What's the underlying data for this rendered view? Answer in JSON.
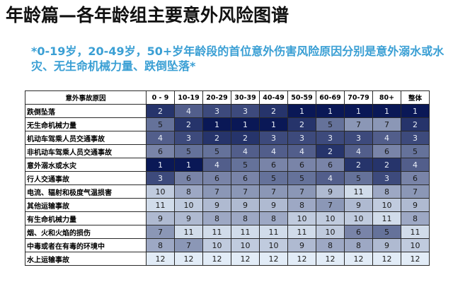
{
  "page": {
    "title": "年龄篇—各年龄组主要意外风险图谱",
    "subtitle": "*0-19岁，20-49岁，50+岁年龄段的首位意外伤害风险原因分别是意外溺水或水灾、无生命机械力量、跌倒坠落*"
  },
  "table": {
    "header_cause": "意外事故原因",
    "columns": [
      "0 - 9",
      "10-19",
      "20-29",
      "30-39",
      "40-49",
      "50-59",
      "60-69",
      "70-79",
      "80+",
      "整体"
    ],
    "rows": [
      {
        "cause": "跌倒坠落",
        "values": [
          2,
          4,
          3,
          3,
          2,
          1,
          1,
          1,
          1,
          1
        ]
      },
      {
        "cause": "无生命机械力量",
        "values": [
          5,
          2,
          1,
          1,
          1,
          2,
          5,
          7,
          7,
          2
        ]
      },
      {
        "cause": "机动车驾乘人员交通事故",
        "values": [
          4,
          3,
          2,
          2,
          3,
          3,
          3,
          3,
          4,
          3
        ]
      },
      {
        "cause": "非机动车驾乘人员交通事故",
        "values": [
          6,
          5,
          5,
          4,
          4,
          4,
          2,
          4,
          6,
          5
        ]
      },
      {
        "cause": "意外溺水或水灾",
        "values": [
          1,
          1,
          4,
          5,
          6,
          6,
          6,
          2,
          2,
          4
        ]
      },
      {
        "cause": "行人交通事故",
        "values": [
          3,
          6,
          6,
          6,
          5,
          5,
          4,
          5,
          3,
          6
        ]
      },
      {
        "cause": "电流、辐射和极度气温损害",
        "values": [
          10,
          8,
          7,
          7,
          7,
          7,
          9,
          11,
          8,
          7
        ]
      },
      {
        "cause": "其他运输事故",
        "values": [
          11,
          10,
          9,
          9,
          9,
          8,
          7,
          9,
          10,
          9
        ]
      },
      {
        "cause": "有生命机械力量",
        "values": [
          9,
          9,
          8,
          8,
          8,
          10,
          10,
          10,
          11,
          8
        ]
      },
      {
        "cause": "烟、火和火焰的损伤",
        "values": [
          7,
          11,
          11,
          11,
          11,
          11,
          10,
          6,
          5,
          11
        ]
      },
      {
        "cause": "中毒或者在有毒的环境中",
        "values": [
          8,
          7,
          10,
          10,
          10,
          9,
          8,
          8,
          9,
          10
        ]
      },
      {
        "cause": "水上运输事故",
        "values": [
          12,
          12,
          12,
          12,
          12,
          12,
          12,
          12,
          12,
          12
        ]
      }
    ]
  }
}
